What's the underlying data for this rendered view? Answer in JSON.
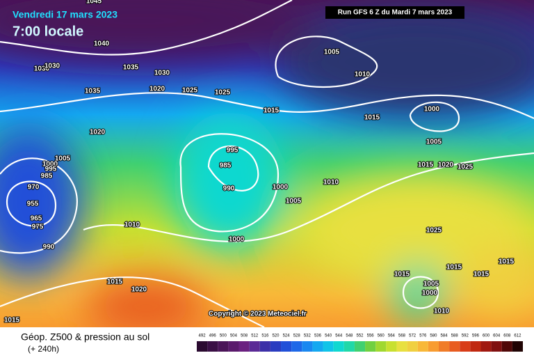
{
  "header": {
    "date": "Vendredi 17 mars 2023",
    "time": "7:00 locale",
    "run": "Run GFS 6 Z du Mardi 7 mars 2023"
  },
  "copyright": "Copyright © 2023 Meteociel.fr",
  "footer": {
    "title": "Géop. Z500 & pression au sol",
    "subtitle": "(+ 240h)"
  },
  "scale": {
    "values": [
      492,
      496,
      500,
      504,
      508,
      512,
      516,
      520,
      524,
      528,
      532,
      536,
      540,
      544,
      548,
      552,
      556,
      560,
      564,
      568,
      572,
      576,
      580,
      584,
      588,
      592,
      596,
      600,
      604,
      608,
      612
    ],
    "colors": [
      "#2a0a30",
      "#3a0f45",
      "#4a1458",
      "#5a1a6c",
      "#6a2080",
      "#5a2a96",
      "#3c30a8",
      "#2a3cc0",
      "#2050d8",
      "#1e68e8",
      "#1a88f0",
      "#14a8f0",
      "#10c4e8",
      "#10d8d0",
      "#20d8a8",
      "#40d070",
      "#70d040",
      "#a0d830",
      "#c8e030",
      "#e8e040",
      "#f0d040",
      "#f8b838",
      "#f89c30",
      "#f07c28",
      "#e85c20",
      "#d83c18",
      "#c02810",
      "#a01810",
      "#801010",
      "#500808",
      "#200404"
    ]
  },
  "isobars": [
    "1045",
    "1040",
    "1030",
    "1030",
    "1035",
    "1030",
    "1020",
    "1025",
    "1025",
    "1035",
    "1020",
    "1005",
    "1010",
    "1015",
    "1015",
    "1000",
    "1005",
    "1015",
    "1020",
    "1025",
    "995",
    "985",
    "990",
    "1000",
    "1000",
    "1010",
    "1005",
    "1005",
    "1000",
    "995",
    "985",
    "970",
    "955",
    "965",
    "975",
    "990",
    "1010",
    "1015",
    "1020",
    "1015",
    "1025",
    "1015",
    "1015",
    "1015",
    "1005",
    "1000",
    "1010",
    "1015"
  ]
}
